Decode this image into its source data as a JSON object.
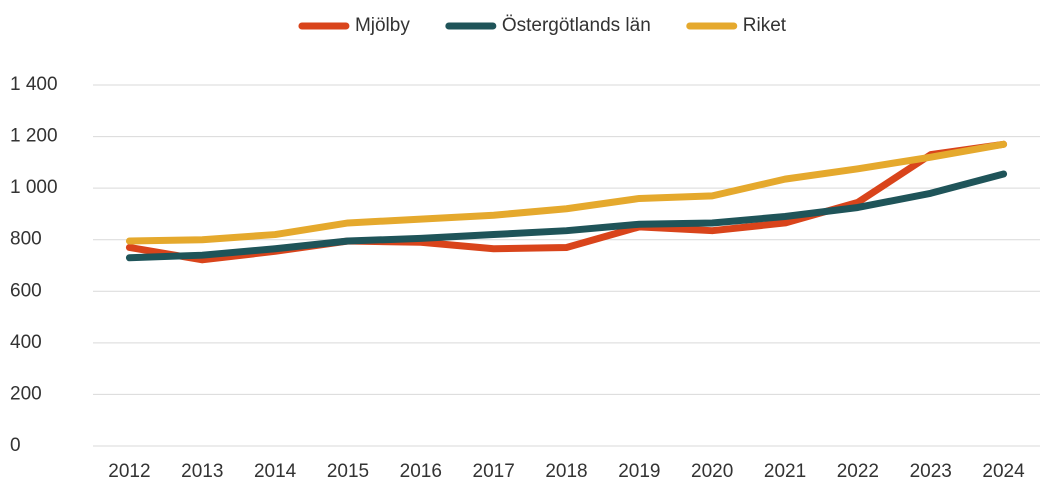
{
  "chart_data": {
    "type": "line",
    "categories": [
      "2012",
      "2013",
      "2014",
      "2015",
      "2016",
      "2017",
      "2018",
      "2019",
      "2020",
      "2021",
      "2022",
      "2023",
      "2024"
    ],
    "series": [
      {
        "name": "Mjölby",
        "color": "#d9441b",
        "values": [
          770,
          722,
          755,
          795,
          790,
          765,
          770,
          850,
          835,
          865,
          945,
          1130,
          1170
        ]
      },
      {
        "name": "Östergötlands län",
        "color": "#1f5459",
        "values": [
          730,
          740,
          765,
          795,
          805,
          820,
          835,
          860,
          865,
          890,
          925,
          980,
          1055
        ]
      },
      {
        "name": "Riket",
        "color": "#e5a92d",
        "values": [
          795,
          800,
          820,
          865,
          880,
          895,
          920,
          960,
          970,
          1035,
          1075,
          1120,
          1170
        ]
      }
    ],
    "ylim": [
      0,
      1400
    ],
    "yticks": [
      0,
      200,
      400,
      600,
      800,
      {
        "value": 1000,
        "label": "1 000"
      },
      {
        "value": 1200,
        "label": "1 200"
      },
      {
        "value": 1400,
        "label": "1 400"
      }
    ],
    "grid": true,
    "legend": "top"
  }
}
